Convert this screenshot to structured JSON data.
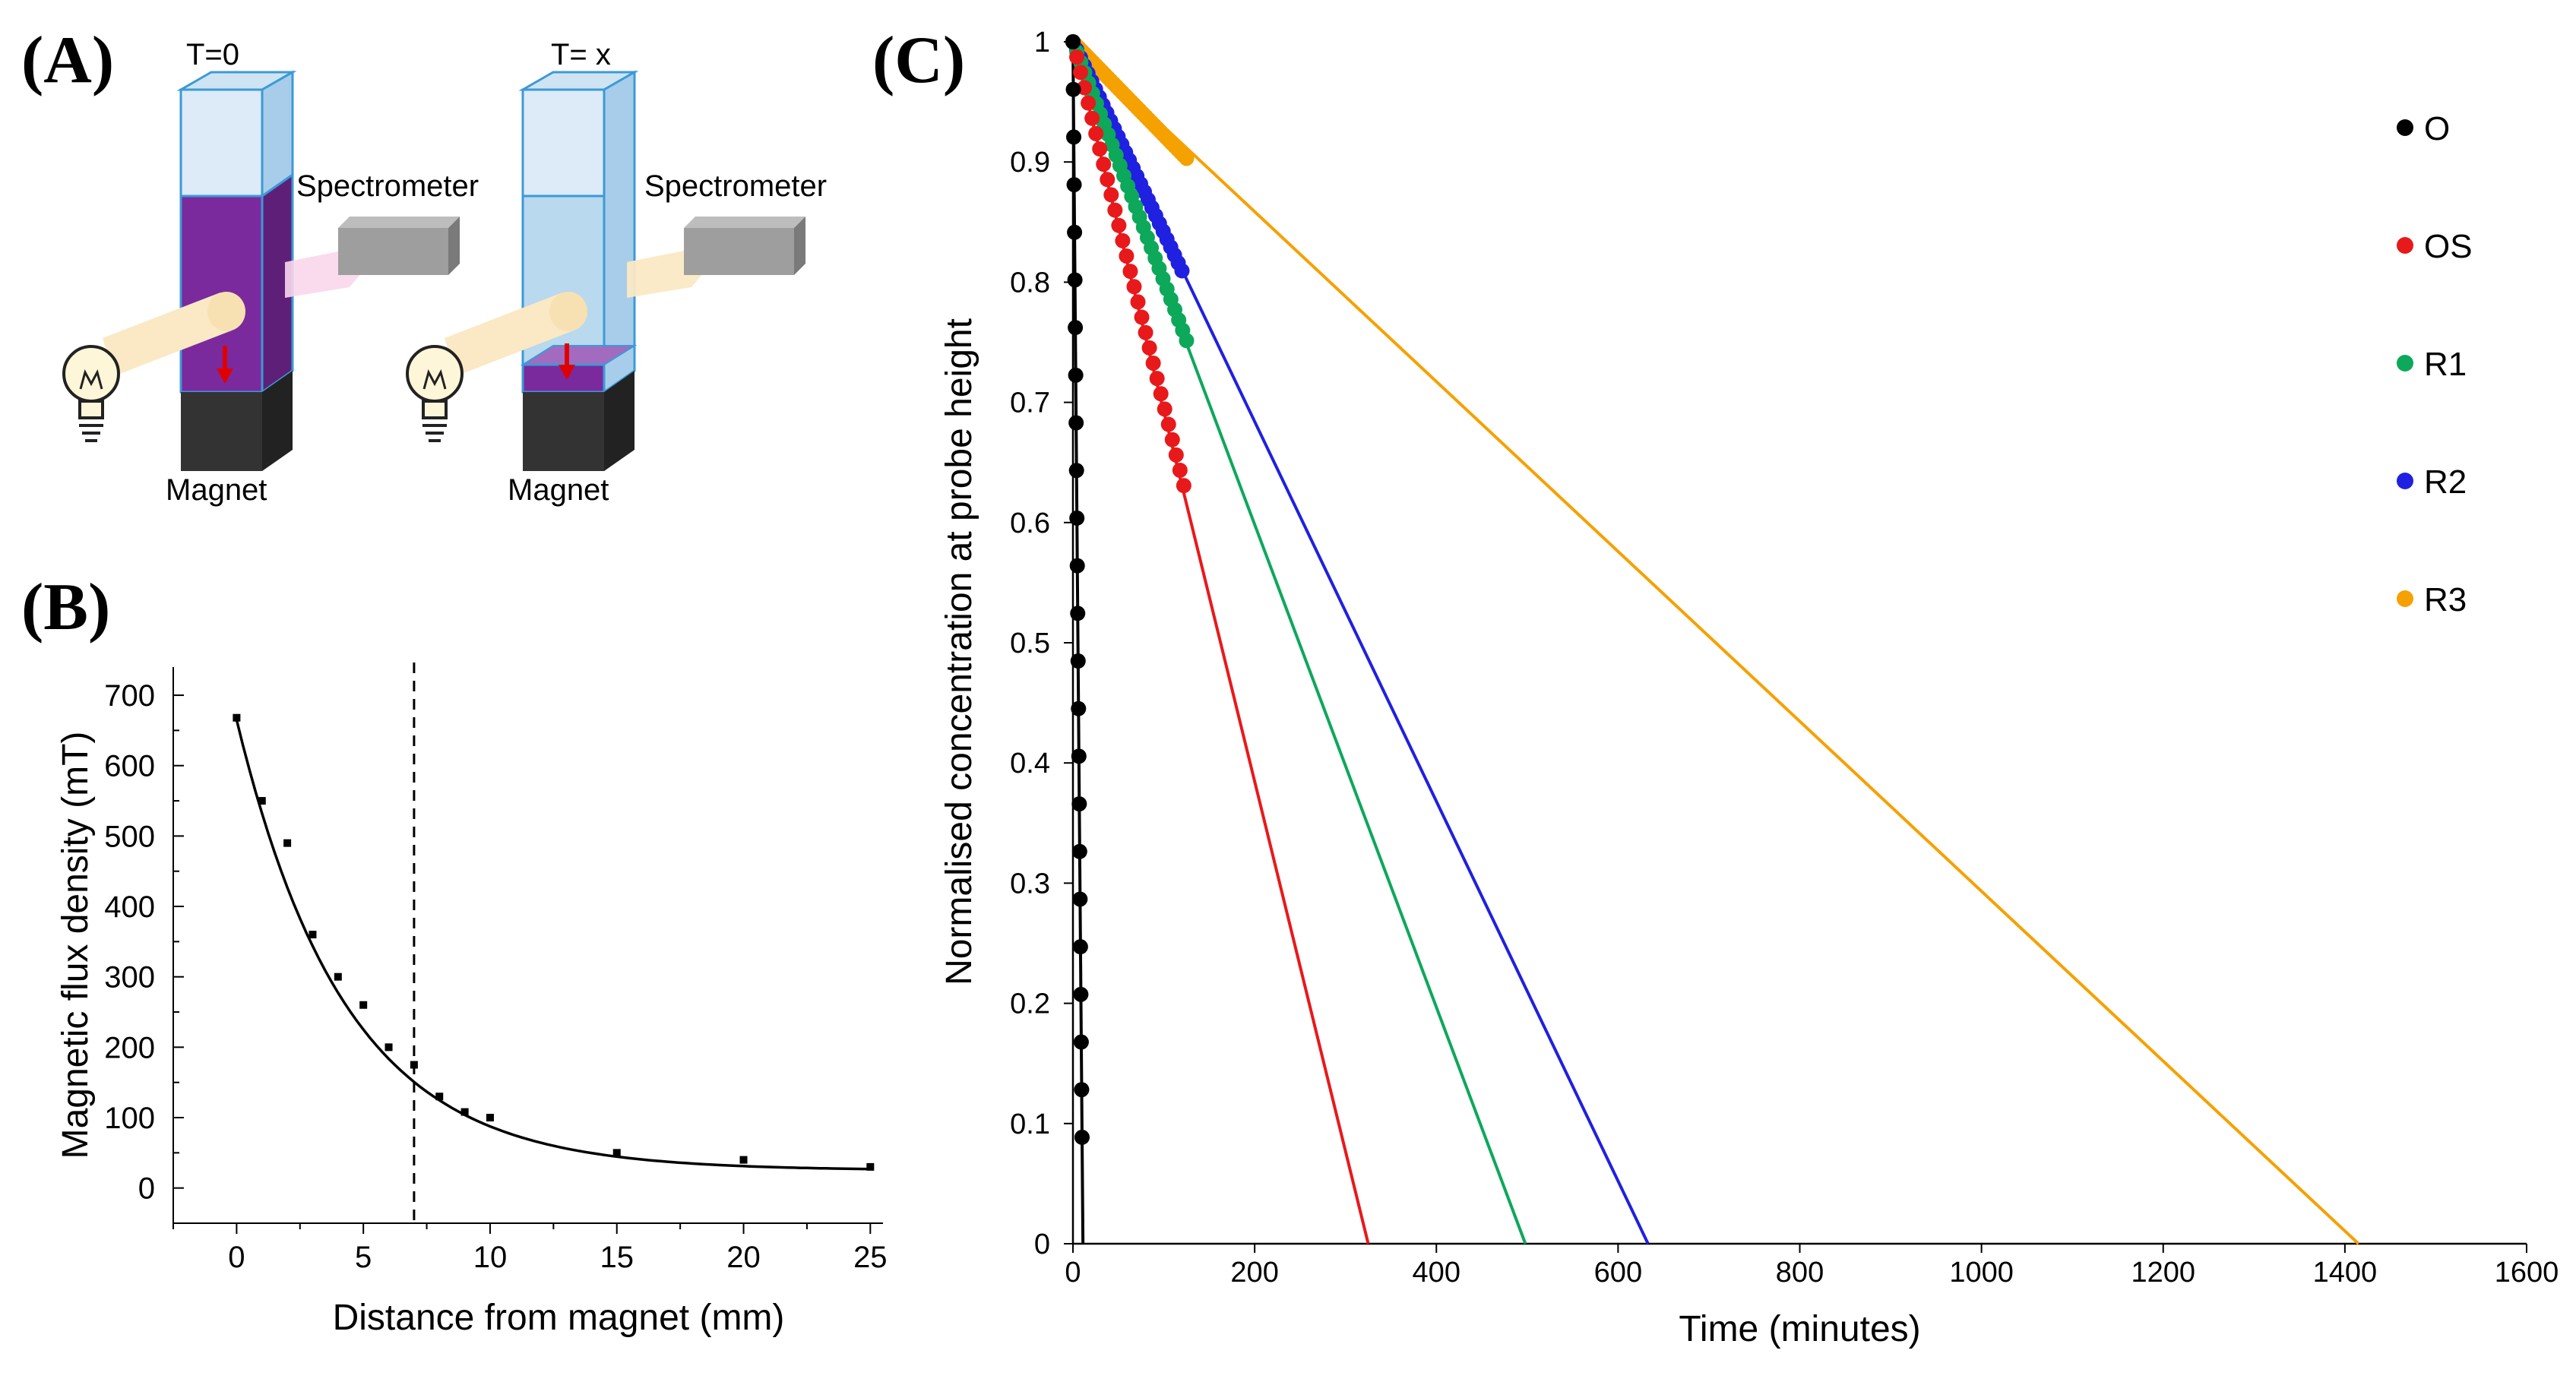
{
  "panels": {
    "a": {
      "label": "(A)",
      "t0_label": "T=0",
      "tx_label": "T= x",
      "spectrometer_label": "Spectrometer",
      "magnet_label": "Magnet",
      "icons": [
        "light-bulb-icon",
        "cuvette",
        "magnet",
        "spectrometer",
        "down-arrow-icon"
      ],
      "colors": {
        "purple": "#7B2A9E",
        "light_blue": "#B8D9EE",
        "beam": "#FAE9C4",
        "magnet": "#333333",
        "arrow": "#E00000"
      }
    },
    "b": {
      "label": "(B)"
    },
    "c": {
      "label": "(C)"
    }
  },
  "chart_data": [
    {
      "id": "B",
      "type": "scatter",
      "title": "",
      "xlabel": "Distance from magnet (mm)",
      "ylabel": "Magnetic flux density (mT)",
      "xlim": [
        -2.5,
        25.5
      ],
      "ylim": [
        -50,
        740
      ],
      "xticks": [
        0,
        5,
        10,
        15,
        20,
        25
      ],
      "yticks": [
        0,
        100,
        200,
        300,
        400,
        500,
        600,
        700
      ],
      "points": [
        [
          0,
          668
        ],
        [
          1,
          550
        ],
        [
          2,
          490
        ],
        [
          3,
          360
        ],
        [
          4,
          300
        ],
        [
          5,
          260
        ],
        [
          6,
          200
        ],
        [
          7,
          175
        ],
        [
          8,
          130
        ],
        [
          9,
          108
        ],
        [
          10,
          100
        ],
        [
          15,
          50
        ],
        [
          20,
          40
        ],
        [
          25,
          30
        ]
      ],
      "fit": {
        "model": "exponential decay",
        "y0": 25,
        "A": 640,
        "tau": 4.3
      },
      "vline_x": 7,
      "colors": {
        "marker": "#000000",
        "fit": "#000000"
      }
    },
    {
      "id": "C",
      "type": "scatter",
      "title": "",
      "xlabel": "Time (minutes)",
      "ylabel": "Normalised concentration at probe height",
      "xlim": [
        0,
        1600
      ],
      "ylim": [
        0,
        1
      ],
      "xticks": [
        0,
        200,
        400,
        600,
        800,
        1000,
        1200,
        1400,
        1600
      ],
      "yticks": [
        "0",
        "0.1",
        "0.2",
        "0.3",
        "0.4",
        "0.5",
        "0.6",
        "0.7",
        "0.8",
        "0.9",
        "1"
      ],
      "series": [
        {
          "name": "O",
          "color": "#000000",
          "fit_end_x": 11,
          "fit_start_y": 1.0,
          "x_range": [
            0,
            10
          ],
          "y_range": [
            1.0,
            0.085
          ],
          "n_points": 24
        },
        {
          "name": "OS",
          "color": "#E8191B",
          "fit_end_x": 325,
          "fit_start_y": 1.0,
          "x_range": [
            0,
            122
          ],
          "y_range": [
            1.0,
            0.64
          ],
          "n_points": 30
        },
        {
          "name": "R1",
          "color": "#0DA85A",
          "fit_end_x": 498,
          "fit_start_y": 1.0,
          "x_range": [
            0,
            125
          ],
          "y_range": [
            1.0,
            0.755
          ],
          "n_points": 30
        },
        {
          "name": "R2",
          "color": "#2020E0",
          "fit_end_x": 633,
          "fit_start_y": 1.0,
          "x_range": [
            0,
            120
          ],
          "y_range": [
            1.0,
            0.808
          ],
          "n_points": 30
        },
        {
          "name": "R3",
          "color": "#F5A100",
          "fit_end_x": 1415,
          "fit_start_y": 1.0,
          "x_range": [
            0,
            125
          ],
          "y_range": [
            1.0,
            0.89
          ],
          "n_points": 40
        }
      ],
      "legend": {
        "placement": "top-right",
        "entries": [
          "O",
          "OS",
          "R1",
          "R2",
          "R3"
        ]
      }
    }
  ]
}
